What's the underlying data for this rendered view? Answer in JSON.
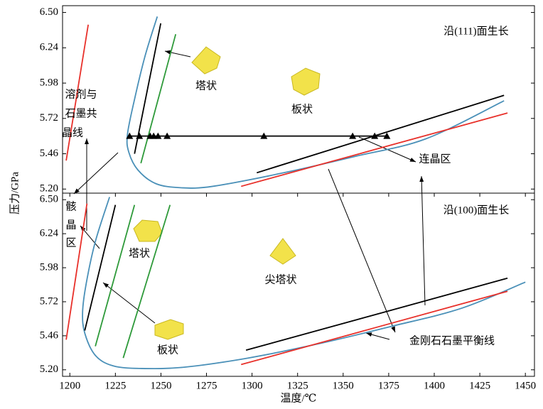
{
  "chart_data": [
    {
      "type": "line",
      "y_label": "压力/GPa",
      "xlim": [
        1196,
        1455
      ],
      "ylim": [
        5.17,
        6.55
      ],
      "yticks": [
        {
          "value": 5.2,
          "label": "5.20"
        },
        5.46,
        5.72,
        5.98,
        6.24,
        {
          "value": 6.5,
          "label": "6.50"
        }
      ],
      "annotations": [
        "沿(111)面生长",
        "塔状",
        "板状",
        "溶剂与",
        "石墨共",
        "晶线",
        "连晶区"
      ],
      "series": [
        {
          "color": "#e8302a",
          "x": [
            1198.0,
            1210.1
          ],
          "values": [
            5.41,
            6.41
          ]
        },
        {
          "color": "#4a90b8",
          "x": [
            1248.0,
            1241.3,
            1235.5,
            1231.6,
            1232.4,
            1237.4,
            1247.2,
            1260.8,
            1278.4,
            1317.4,
            1356.4,
            1395.4,
            1438.3
          ],
          "values": [
            6.47,
            6.18,
            5.86,
            5.6,
            5.47,
            5.34,
            5.24,
            5.21,
            5.22,
            5.32,
            5.44,
            5.57,
            5.85
          ]
        },
        {
          "color": "#000000",
          "x": [
            1235.5,
            1249.9
          ],
          "values": [
            5.46,
            6.42
          ]
        },
        {
          "color": "#2e9a3a",
          "x": [
            1239.0,
            1258.1
          ],
          "values": [
            5.39,
            6.34
          ]
        },
        {
          "color": "#000000",
          "x": [
            1302.6,
            1438.3
          ],
          "values": [
            5.32,
            5.89
          ]
        },
        {
          "color": "#e8302a",
          "x": [
            1294.0,
            1440.2
          ],
          "values": [
            5.22,
            5.76
          ]
        },
        {
          "color": "#000000",
          "marker": "triangle",
          "x": [
            1232.8,
            1238.2,
            1244.1,
            1246.0,
            1248.4,
            1253.4,
            1306.5,
            1355.2,
            1367.3,
            1374.0
          ],
          "values": [
            5.59,
            5.59,
            5.59,
            5.59,
            5.59,
            5.59,
            5.59,
            5.59,
            5.59,
            5.59
          ]
        }
      ]
    },
    {
      "type": "line",
      "x_label": "温度/℃",
      "xlim": [
        1196,
        1455
      ],
      "ylim": [
        5.15,
        6.55
      ],
      "xticks": [
        1200,
        1225,
        1250,
        1275,
        1300,
        1325,
        1350,
        1375,
        1400,
        1425,
        1450
      ],
      "yticks": [
        {
          "value": 5.2,
          "label": "5.20"
        },
        5.46,
        5.72,
        5.98,
        6.24,
        {
          "value": 6.5,
          "label": "6.50"
        }
      ],
      "annotations": [
        "沿(100)面生长",
        "骸",
        "晶",
        "区",
        "塔状",
        "尖塔状",
        "板状",
        "金刚石石墨平衡线"
      ],
      "series": [
        {
          "color": "#e8302a",
          "x": [
            1198.0,
            1209.4
          ],
          "values": [
            5.43,
            6.47
          ]
        },
        {
          "color": "#4a90b8",
          "x": [
            1221.8,
            1214.0,
            1209.0,
            1207.0,
            1208.2,
            1214.0,
            1223.8,
            1239.4,
            1262.8,
            1297.9,
            1336.9,
            1375.9,
            1414.9,
            1450.0
          ],
          "values": [
            6.52,
            6.18,
            5.86,
            5.64,
            5.48,
            5.31,
            5.23,
            5.21,
            5.22,
            5.29,
            5.4,
            5.53,
            5.67,
            5.87
          ]
        },
        {
          "color": "#000000",
          "x": [
            1208.2,
            1225.0
          ],
          "values": [
            5.5,
            6.46
          ]
        },
        {
          "color": "#2e9a3a",
          "x": [
            1214.0,
            1235.5
          ],
          "values": [
            5.38,
            6.46
          ]
        },
        {
          "color": "#2e9a3a",
          "x": [
            1229.3,
            1255.0
          ],
          "values": [
            5.29,
            6.46
          ]
        },
        {
          "color": "#000000",
          "x": [
            1296.7,
            1440.2
          ],
          "values": [
            5.35,
            5.9
          ]
        },
        {
          "color": "#e8302a",
          "x": [
            1294.0,
            1440.2
          ],
          "values": [
            5.24,
            5.8
          ]
        }
      ]
    }
  ]
}
